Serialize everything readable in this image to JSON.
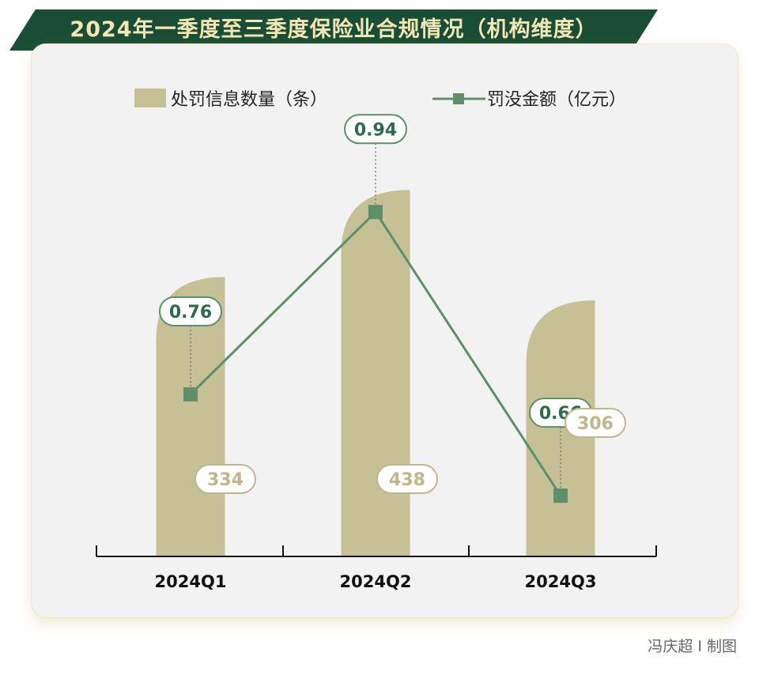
{
  "header": {
    "title": "2024年一季度至三季度保险业合规情况（机构维度）"
  },
  "colors": {
    "banner": "#1b4d36",
    "banner_text": "#f1e6b5",
    "bar": "#c5c095",
    "line": "#5e8f6a",
    "marker": "#5e8f6a",
    "line_label": "#2f6a4c",
    "bar_label": "#bdb78e"
  },
  "chart_data": {
    "type": "bar",
    "categories": [
      "2024Q1",
      "2024Q2",
      "2024Q3"
    ],
    "series": [
      {
        "name": "处罚信息数量（条）",
        "type": "bar",
        "values": [
          334,
          438,
          306
        ]
      },
      {
        "name": "罚没金额（亿元）",
        "type": "line",
        "values": [
          0.76,
          0.94,
          0.66
        ]
      }
    ],
    "bar_labels": [
      "334",
      "438",
      "306"
    ],
    "line_labels": [
      "0.76",
      "0.94",
      "0.66"
    ],
    "legend_position": "top",
    "grid": false,
    "ylim_bar": [
      0,
      460
    ],
    "ylim_line": [
      0.6,
      0.98
    ]
  },
  "credit": "冯庆超 I 制图"
}
